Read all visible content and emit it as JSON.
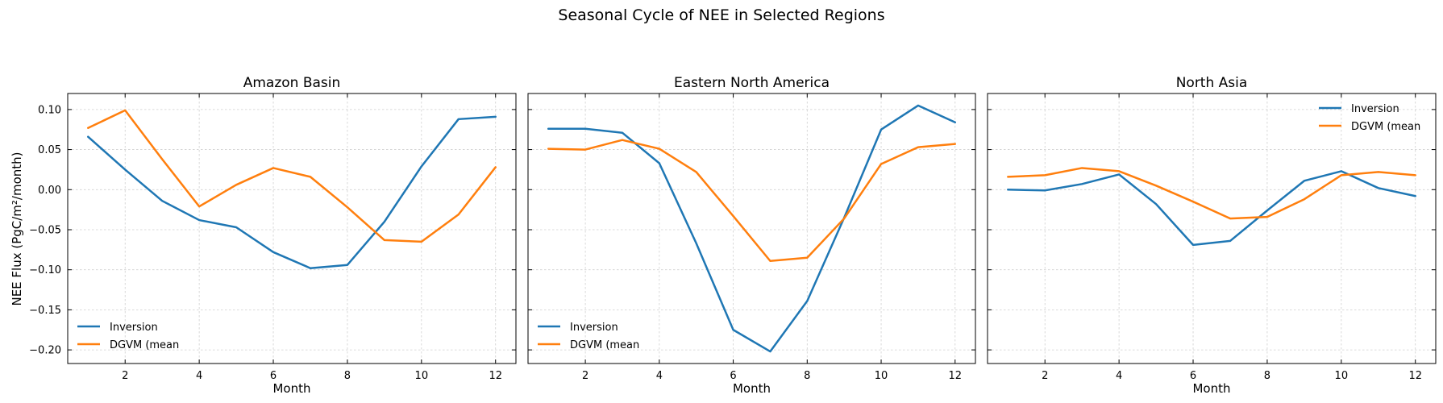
{
  "chart_data": {
    "type": "line",
    "title": "Seasonal Cycle of NEE in Selected Regions",
    "ylabel": "NEE Flux (PgC/m²/month)",
    "xlabel": "Month",
    "sharey": true,
    "ylim": [
      -0.217,
      0.12
    ],
    "xlim": [
      0.45,
      12.55
    ],
    "xticks": [
      2,
      4,
      6,
      8,
      10,
      12
    ],
    "yticks": [
      -0.2,
      -0.15,
      -0.1,
      -0.05,
      0.0,
      0.05,
      0.1
    ],
    "ytick_labels": [
      "−0.20",
      "−0.15",
      "−0.10",
      "−0.05",
      "0.00",
      "0.05",
      "0.10"
    ],
    "grid": true,
    "colors": {
      "Inversion": "#1f77b4",
      "DGVM (mean": "#ff7f0e"
    },
    "panels": [
      {
        "title": "Amazon Basin",
        "legend_position": "lower-left",
        "x": [
          1,
          2,
          3,
          4,
          5,
          6,
          7,
          8,
          9,
          10,
          11,
          12
        ],
        "series": [
          {
            "name": "Inversion",
            "values": [
              0.066,
              0.025,
              -0.014,
              -0.038,
              -0.047,
              -0.078,
              -0.098,
              -0.094,
              -0.04,
              0.029,
              0.088,
              0.091
            ]
          },
          {
            "name": "DGVM (mean",
            "values": [
              0.077,
              0.099,
              0.038,
              -0.021,
              0.006,
              0.027,
              0.016,
              -0.022,
              -0.063,
              -0.065,
              -0.031,
              0.028
            ]
          }
        ]
      },
      {
        "title": "Eastern North America",
        "legend_position": "lower-left",
        "x": [
          1,
          2,
          3,
          4,
          5,
          6,
          7,
          8,
          9,
          10,
          11,
          12
        ],
        "series": [
          {
            "name": "Inversion",
            "values": [
              0.076,
              0.076,
              0.071,
              0.033,
              -0.067,
              -0.175,
              -0.202,
              -0.139,
              -0.035,
              0.075,
              0.105,
              0.084
            ]
          },
          {
            "name": "DGVM (mean",
            "values": [
              0.051,
              0.05,
              0.062,
              0.051,
              0.022,
              -0.033,
              -0.089,
              -0.085,
              -0.036,
              0.032,
              0.053,
              0.057
            ]
          }
        ]
      },
      {
        "title": "North Asia",
        "legend_position": "upper-right",
        "x": [
          1,
          2,
          3,
          4,
          5,
          6,
          7,
          8,
          9,
          10,
          11,
          12
        ],
        "series": [
          {
            "name": "Inversion",
            "values": [
              0.0,
              -0.001,
              0.007,
              0.019,
              -0.018,
              -0.069,
              -0.064,
              -0.026,
              0.011,
              0.023,
              0.002,
              -0.008
            ]
          },
          {
            "name": "DGVM (mean",
            "values": [
              0.016,
              0.018,
              0.027,
              0.023,
              0.005,
              -0.015,
              -0.036,
              -0.034,
              -0.012,
              0.018,
              0.022,
              0.018
            ]
          }
        ]
      }
    ]
  }
}
